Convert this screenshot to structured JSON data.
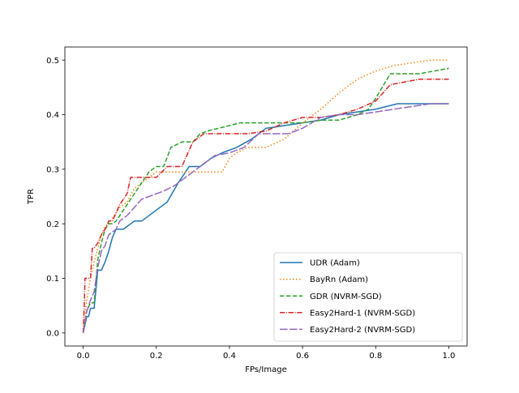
{
  "chart_data": {
    "type": "line",
    "title": "",
    "xlabel": "FPs/Image",
    "ylabel": "TPR",
    "xlim": [
      -0.05,
      1.05
    ],
    "ylim": [
      -0.024,
      0.524
    ],
    "xticks": [
      0.0,
      0.2,
      0.4,
      0.6,
      0.8,
      1.0
    ],
    "xtick_labels": [
      "0.0",
      "0.2",
      "0.4",
      "0.6",
      "0.8",
      "1.0"
    ],
    "yticks": [
      0.0,
      0.1,
      0.2,
      0.3,
      0.4,
      0.5
    ],
    "ytick_labels": [
      "0.0",
      "0.1",
      "0.2",
      "0.3",
      "0.4",
      "0.5"
    ],
    "grid": false,
    "legend_position": "lower-right",
    "series": [
      {
        "name": "UDR (Adam)",
        "color": "#1f77b4",
        "style": "solid",
        "x": [
          0.0,
          0.005,
          0.01,
          0.015,
          0.02,
          0.03,
          0.04,
          0.05,
          0.06,
          0.07,
          0.08,
          0.09,
          0.1,
          0.11,
          0.12,
          0.13,
          0.14,
          0.16,
          0.18,
          0.2,
          0.23,
          0.26,
          0.29,
          0.32,
          0.35,
          0.38,
          0.42,
          0.46,
          0.5,
          0.55,
          0.6,
          0.65,
          0.7,
          0.8,
          0.86,
          1.0
        ],
        "y": [
          0.0,
          0.015,
          0.03,
          0.03,
          0.045,
          0.045,
          0.115,
          0.115,
          0.13,
          0.15,
          0.175,
          0.19,
          0.19,
          0.19,
          0.195,
          0.2,
          0.205,
          0.205,
          0.215,
          0.225,
          0.24,
          0.275,
          0.305,
          0.305,
          0.32,
          0.33,
          0.34,
          0.355,
          0.375,
          0.38,
          0.385,
          0.39,
          0.4,
          0.41,
          0.42,
          0.42
        ]
      },
      {
        "name": "BayRn (Adam)",
        "color": "#ff7f0e",
        "style": "dotted",
        "x": [
          0.0,
          0.005,
          0.01,
          0.02,
          0.03,
          0.04,
          0.05,
          0.06,
          0.07,
          0.09,
          0.1,
          0.12,
          0.14,
          0.16,
          0.18,
          0.2,
          0.25,
          0.3,
          0.32,
          0.35,
          0.38,
          0.4,
          0.42,
          0.45,
          0.5,
          0.55,
          0.6,
          0.65,
          0.7,
          0.75,
          0.8,
          0.85,
          0.9,
          0.95,
          1.0
        ],
        "y": [
          0.0,
          0.03,
          0.06,
          0.1,
          0.13,
          0.155,
          0.18,
          0.195,
          0.2,
          0.22,
          0.23,
          0.24,
          0.265,
          0.275,
          0.285,
          0.295,
          0.295,
          0.295,
          0.295,
          0.295,
          0.295,
          0.32,
          0.33,
          0.34,
          0.34,
          0.355,
          0.385,
          0.41,
          0.44,
          0.465,
          0.48,
          0.49,
          0.495,
          0.5,
          0.5
        ]
      },
      {
        "name": "GDR (NVRM-SGD)",
        "color": "#2ca02c",
        "style": "dashed",
        "x": [
          0.0,
          0.005,
          0.01,
          0.02,
          0.03,
          0.04,
          0.05,
          0.06,
          0.07,
          0.08,
          0.09,
          0.1,
          0.12,
          0.14,
          0.16,
          0.18,
          0.2,
          0.22,
          0.24,
          0.27,
          0.3,
          0.32,
          0.34,
          0.37,
          0.4,
          0.43,
          0.46,
          0.5,
          0.55,
          0.6,
          0.65,
          0.7,
          0.75,
          0.78,
          0.8,
          0.84,
          0.88,
          0.92,
          0.96,
          1.0
        ],
        "y": [
          0.0,
          0.02,
          0.04,
          0.055,
          0.055,
          0.135,
          0.165,
          0.19,
          0.2,
          0.2,
          0.205,
          0.215,
          0.235,
          0.255,
          0.275,
          0.295,
          0.305,
          0.305,
          0.34,
          0.35,
          0.35,
          0.365,
          0.37,
          0.375,
          0.38,
          0.385,
          0.385,
          0.385,
          0.385,
          0.385,
          0.39,
          0.39,
          0.4,
          0.41,
          0.43,
          0.475,
          0.475,
          0.475,
          0.48,
          0.485
        ]
      },
      {
        "name": "Easy2Hard-1 (NVRM-SGD)",
        "color": "#d62728",
        "style": "dashdot",
        "x": [
          0.0,
          0.003,
          0.005,
          0.01,
          0.02,
          0.025,
          0.03,
          0.04,
          0.05,
          0.06,
          0.07,
          0.08,
          0.1,
          0.12,
          0.13,
          0.15,
          0.18,
          0.2,
          0.23,
          0.27,
          0.3,
          0.33,
          0.37,
          0.4,
          0.45,
          0.5,
          0.55,
          0.6,
          0.65,
          0.7,
          0.75,
          0.8,
          0.84,
          0.88,
          0.92,
          0.96,
          1.0
        ],
        "y": [
          0.0,
          0.05,
          0.1,
          0.1,
          0.1,
          0.155,
          0.155,
          0.165,
          0.18,
          0.19,
          0.205,
          0.205,
          0.235,
          0.255,
          0.285,
          0.285,
          0.285,
          0.285,
          0.305,
          0.305,
          0.35,
          0.365,
          0.365,
          0.365,
          0.365,
          0.37,
          0.385,
          0.395,
          0.395,
          0.4,
          0.41,
          0.425,
          0.455,
          0.46,
          0.465,
          0.465,
          0.465
        ]
      },
      {
        "name": "Easy2Hard-2 (NVRM-SGD)",
        "color": "#9467bd",
        "style": "longdash",
        "x": [
          0.0,
          0.005,
          0.01,
          0.02,
          0.03,
          0.04,
          0.05,
          0.06,
          0.07,
          0.08,
          0.09,
          0.1,
          0.12,
          0.14,
          0.16,
          0.18,
          0.2,
          0.22,
          0.25,
          0.28,
          0.3,
          0.33,
          0.36,
          0.4,
          0.44,
          0.48,
          0.52,
          0.56,
          0.6,
          0.65,
          0.7,
          0.75,
          0.8,
          0.85,
          0.9,
          0.95,
          1.0
        ],
        "y": [
          0.0,
          0.02,
          0.04,
          0.06,
          0.075,
          0.12,
          0.15,
          0.16,
          0.18,
          0.185,
          0.19,
          0.205,
          0.215,
          0.23,
          0.245,
          0.25,
          0.255,
          0.26,
          0.27,
          0.285,
          0.295,
          0.31,
          0.325,
          0.33,
          0.34,
          0.365,
          0.365,
          0.365,
          0.375,
          0.395,
          0.4,
          0.4,
          0.405,
          0.41,
          0.415,
          0.42,
          0.42
        ]
      }
    ]
  }
}
